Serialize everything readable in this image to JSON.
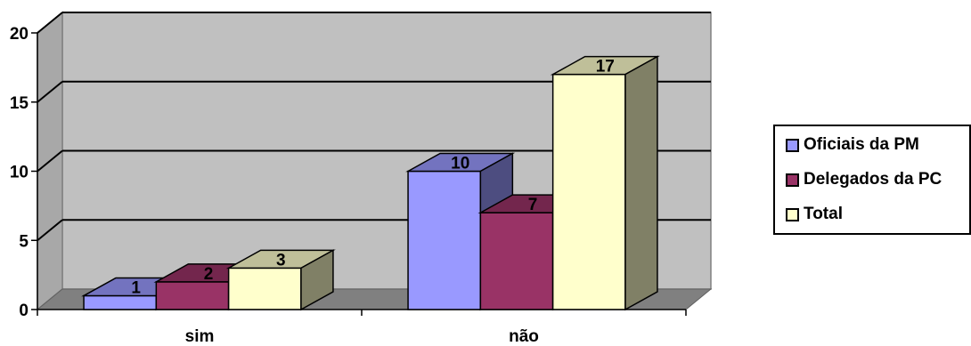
{
  "chart_data": {
    "type": "bar",
    "categories": [
      "sim",
      "não"
    ],
    "series": [
      {
        "name": "Oficiais da PM",
        "values": [
          1,
          10
        ],
        "color": "#9999FF"
      },
      {
        "name": "Delegados da PC",
        "values": [
          2,
          7
        ],
        "color": "#993366"
      },
      {
        "name": "Total",
        "values": [
          3,
          17
        ],
        "color": "#FFFFCC"
      }
    ],
    "ylim": [
      0,
      20
    ],
    "yticks": [
      0,
      5,
      10,
      15,
      20
    ],
    "grid": true,
    "legend_position": "right",
    "style": "3d-clustered-column",
    "background_color": "#C0C0C0"
  }
}
